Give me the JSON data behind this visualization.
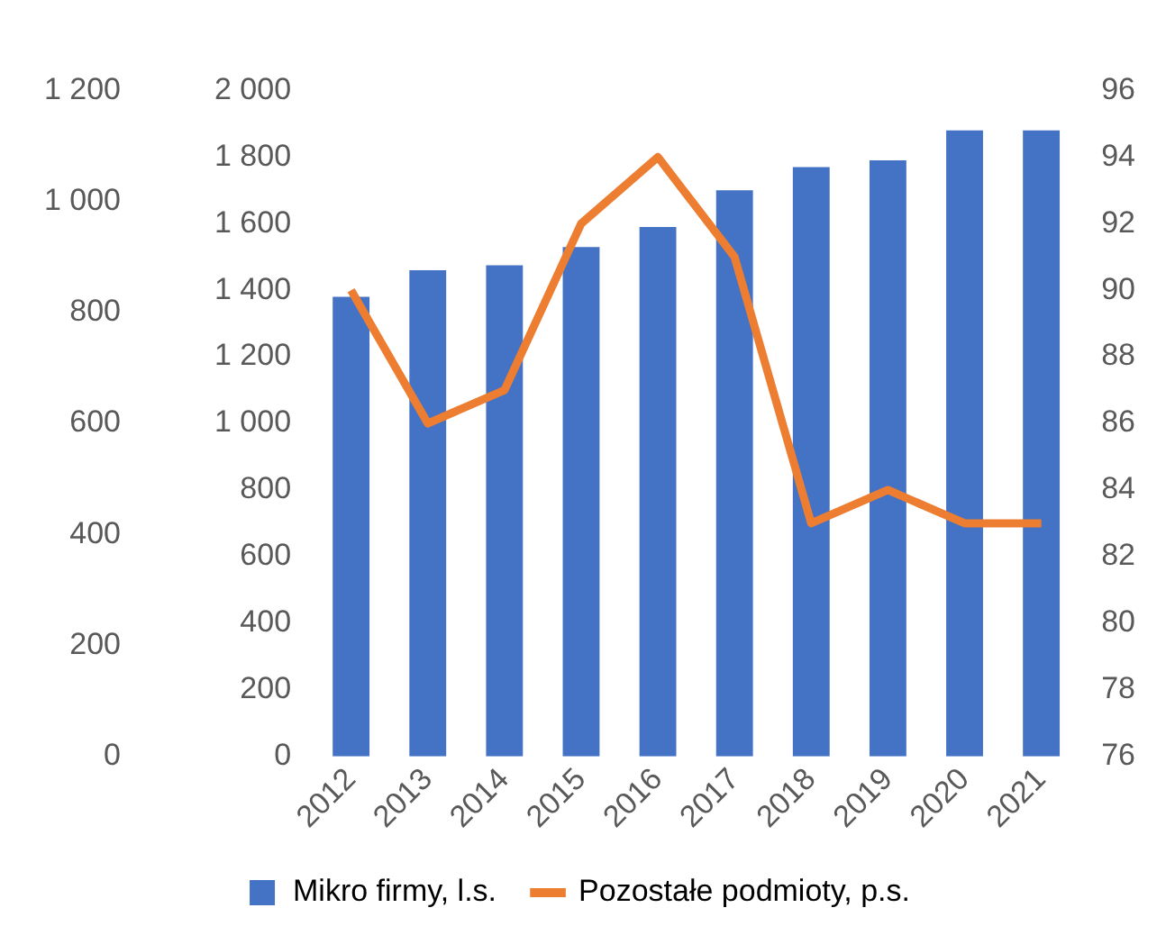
{
  "chart_data": {
    "type": "bar",
    "categories": [
      "2012",
      "2013",
      "2014",
      "2015",
      "2016",
      "2017",
      "2018",
      "2019",
      "2020",
      "2021"
    ],
    "series": [
      {
        "name": "Mikro firmy, l.s.",
        "axis": "y",
        "color": "#4472c4",
        "values": [
          1380,
          1460,
          1475,
          1530,
          1590,
          1700,
          1770,
          1790,
          1880,
          1880
        ]
      },
      {
        "name": "Pozostałe podmioty, p.s.",
        "type": "line",
        "axis": "y2",
        "color": "#ed7d31",
        "marker": "none",
        "line_style": "solid",
        "values": [
          90,
          86,
          87,
          92,
          94,
          91,
          83,
          84,
          83,
          83
        ]
      }
    ],
    "ylim": [
      0,
      2000
    ],
    "yticks": [
      0,
      200,
      400,
      600,
      800,
      {
        "value": 1000,
        "label": "1 000"
      },
      {
        "value": 1200,
        "label": "1 200"
      },
      {
        "value": 1400,
        "label": "1 400"
      },
      {
        "value": 1600,
        "label": "1 600"
      },
      {
        "value": 1800,
        "label": "1 800"
      },
      {
        "value": 2000,
        "label": "2 000"
      }
    ],
    "y2lim": [
      76,
      96
    ],
    "y2ticks": [
      76,
      78,
      80,
      82,
      84,
      86,
      88,
      90,
      92,
      94,
      96
    ],
    "y3lim": [
      0,
      1200
    ],
    "y3ticks": [
      0,
      200,
      400,
      600,
      800,
      {
        "value": 1000,
        "label": "1 000"
      },
      {
        "value": 1200,
        "label": "1 200"
      }
    ],
    "grid": false,
    "legend": "bottom"
  }
}
